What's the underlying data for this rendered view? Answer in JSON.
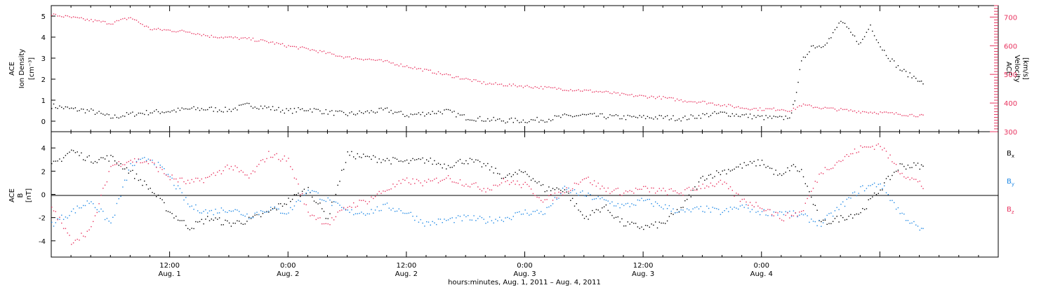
{
  "chart_data": [
    {
      "type": "scatter",
      "panel": "top",
      "ylabel_left": [
        "ACE",
        "Ion Density",
        "[cm⁻³]"
      ],
      "ylabel_right": [
        "ACE",
        "Velocity",
        "[km/s]"
      ],
      "ylim_left": [
        -0.5,
        5.5
      ],
      "yticks_left": [
        0,
        1,
        2,
        3,
        4,
        5
      ],
      "ylim_right": [
        300,
        740
      ],
      "yticks_right": [
        300,
        400,
        500,
        600,
        700
      ],
      "colors": {
        "density": "#000000",
        "velocity": "#e8335f"
      },
      "series": [
        {
          "key": "density",
          "axis": "left",
          "color": "#000000",
          "points": [
            [
              0,
              0.75
            ],
            [
              2,
              0.6
            ],
            [
              4,
              0.5
            ],
            [
              6,
              0.2
            ],
            [
              8,
              0.35
            ],
            [
              10,
              0.45
            ],
            [
              12,
              0.5
            ],
            [
              14,
              0.6
            ],
            [
              16,
              0.6
            ],
            [
              18,
              0.55
            ],
            [
              20,
              0.8
            ],
            [
              22,
              0.65
            ],
            [
              24,
              0.5
            ],
            [
              26,
              0.6
            ],
            [
              28,
              0.45
            ],
            [
              30,
              0.35
            ],
            [
              32,
              0.45
            ],
            [
              34,
              0.55
            ],
            [
              36,
              0.3
            ],
            [
              38,
              0.4
            ],
            [
              40,
              0.5
            ],
            [
              42,
              0.2
            ],
            [
              44,
              0.1
            ],
            [
              46,
              0.05
            ],
            [
              48,
              0.05
            ],
            [
              50,
              0.1
            ],
            [
              52,
              0.25
            ],
            [
              54,
              0.3
            ],
            [
              56,
              0.25
            ],
            [
              58,
              0.2
            ],
            [
              60,
              0.2
            ],
            [
              62,
              0.2
            ],
            [
              64,
              0.15
            ],
            [
              66,
              0.3
            ],
            [
              68,
              0.4
            ],
            [
              70,
              0.3
            ],
            [
              72,
              0.2
            ],
            [
              74,
              0.15
            ],
            [
              75,
              0.3
            ],
            [
              75.5,
              1.5
            ],
            [
              76,
              2.8
            ],
            [
              77,
              3.6
            ],
            [
              78,
              3.6
            ],
            [
              79,
              4.0
            ],
            [
              80,
              4.8
            ],
            [
              81,
              4.2
            ],
            [
              82,
              3.7
            ],
            [
              83,
              4.6
            ],
            [
              84,
              3.6
            ],
            [
              85,
              3.0
            ],
            [
              86,
              2.5
            ],
            [
              87,
              2.2
            ],
            [
              88,
              2.0
            ],
            [
              88.5,
              1.6
            ]
          ]
        },
        {
          "key": "velocity",
          "axis": "right",
          "color": "#e8335f",
          "points": [
            [
              0,
              710
            ],
            [
              2,
              700
            ],
            [
              4,
              690
            ],
            [
              6,
              680
            ],
            [
              8,
              700
            ],
            [
              10,
              660
            ],
            [
              12,
              655
            ],
            [
              14,
              650
            ],
            [
              16,
              635
            ],
            [
              18,
              630
            ],
            [
              20,
              625
            ],
            [
              22,
              615
            ],
            [
              24,
              600
            ],
            [
              26,
              590
            ],
            [
              28,
              575
            ],
            [
              30,
              560
            ],
            [
              32,
              555
            ],
            [
              34,
              545
            ],
            [
              36,
              530
            ],
            [
              38,
              515
            ],
            [
              40,
              500
            ],
            [
              42,
              485
            ],
            [
              44,
              470
            ],
            [
              46,
              465
            ],
            [
              48,
              460
            ],
            [
              50,
              455
            ],
            [
              52,
              450
            ],
            [
              54,
              445
            ],
            [
              56,
              440
            ],
            [
              58,
              430
            ],
            [
              60,
              425
            ],
            [
              62,
              420
            ],
            [
              64,
              410
            ],
            [
              66,
              405
            ],
            [
              68,
              395
            ],
            [
              70,
              385
            ],
            [
              72,
              380
            ],
            [
              74,
              380
            ],
            [
              75,
              375
            ],
            [
              76,
              395
            ],
            [
              78,
              385
            ],
            [
              80,
              378
            ],
            [
              82,
              372
            ],
            [
              84,
              368
            ],
            [
              86,
              363
            ],
            [
              88,
              358
            ],
            [
              88.5,
              355
            ]
          ]
        }
      ]
    },
    {
      "type": "scatter",
      "panel": "bottom",
      "ylabel_left": [
        "ACE",
        "B",
        "[nT]"
      ],
      "ylim": [
        -5.4,
        5.4
      ],
      "yticks": [
        -4,
        -2,
        0,
        2,
        4
      ],
      "legend": [
        "Bₓ",
        "Bᵧ",
        "B_z"
      ],
      "legend_labels": {
        "bx": "B",
        "bx_sub": "x",
        "by": "B",
        "by_sub": "y",
        "bz": "B",
        "bz_sub": "z"
      },
      "colors": {
        "bx": "#000000",
        "by": "#1e88e5",
        "bz": "#e8335f"
      },
      "series": [
        {
          "key": "bx",
          "color": "#000000",
          "points": [
            [
              0,
              2.5
            ],
            [
              2,
              3.8
            ],
            [
              4,
              3.0
            ],
            [
              6,
              3.2
            ],
            [
              8,
              2.0
            ],
            [
              10,
              0.5
            ],
            [
              12,
              -1.5
            ],
            [
              14,
              -2.8
            ],
            [
              16,
              -2.0
            ],
            [
              18,
              -2.5
            ],
            [
              20,
              -2.2
            ],
            [
              22,
              -1.5
            ],
            [
              24,
              -0.5
            ],
            [
              26,
              0.5
            ],
            [
              28,
              -2.0
            ],
            [
              30,
              3.5
            ],
            [
              32,
              3.2
            ],
            [
              34,
              3.0
            ],
            [
              36,
              2.8
            ],
            [
              38,
              3.0
            ],
            [
              40,
              2.5
            ],
            [
              42,
              3.0
            ],
            [
              44,
              2.5
            ],
            [
              46,
              1.5
            ],
            [
              48,
              2.0
            ],
            [
              50,
              0.5
            ],
            [
              52,
              0.5
            ],
            [
              54,
              -2.0
            ],
            [
              56,
              -1.0
            ],
            [
              58,
              -2.5
            ],
            [
              60,
              -2.8
            ],
            [
              62,
              -2.5
            ],
            [
              64,
              -1.0
            ],
            [
              66,
              1.5
            ],
            [
              68,
              2.0
            ],
            [
              70,
              2.5
            ],
            [
              72,
              2.8
            ],
            [
              74,
              1.5
            ],
            [
              75,
              2.5
            ],
            [
              76,
              2.0
            ],
            [
              78,
              -2.5
            ],
            [
              80,
              -2.0
            ],
            [
              82,
              -1.5
            ],
            [
              84,
              0.5
            ],
            [
              86,
              2.5
            ],
            [
              88,
              2.5
            ],
            [
              88.5,
              2.3
            ]
          ]
        },
        {
          "key": "by",
          "color": "#1e88e5",
          "points": [
            [
              0,
              -2.5
            ],
            [
              2,
              -1.5
            ],
            [
              4,
              -0.5
            ],
            [
              6,
              -2.5
            ],
            [
              8,
              2.5
            ],
            [
              10,
              3.2
            ],
            [
              12,
              1.5
            ],
            [
              14,
              -1.0
            ],
            [
              16,
              -1.5
            ],
            [
              18,
              -1.2
            ],
            [
              20,
              -1.8
            ],
            [
              22,
              -1.2
            ],
            [
              24,
              -1.5
            ],
            [
              26,
              0.5
            ],
            [
              28,
              -0.5
            ],
            [
              30,
              -1.5
            ],
            [
              32,
              -1.5
            ],
            [
              34,
              -1.0
            ],
            [
              36,
              -1.5
            ],
            [
              38,
              -2.5
            ],
            [
              40,
              -2.2
            ],
            [
              42,
              -2.0
            ],
            [
              44,
              -2.2
            ],
            [
              46,
              -2.0
            ],
            [
              48,
              -1.5
            ],
            [
              50,
              -1.5
            ],
            [
              52,
              0.5
            ],
            [
              54,
              0.0
            ],
            [
              56,
              -0.5
            ],
            [
              58,
              -1.0
            ],
            [
              60,
              -0.5
            ],
            [
              62,
              -1.0
            ],
            [
              64,
              -1.5
            ],
            [
              66,
              -1.2
            ],
            [
              68,
              -1.5
            ],
            [
              70,
              -1.0
            ],
            [
              72,
              -1.5
            ],
            [
              74,
              -1.5
            ],
            [
              76,
              -1.8
            ],
            [
              78,
              -2.5
            ],
            [
              80,
              -1.0
            ],
            [
              82,
              0.5
            ],
            [
              84,
              1.0
            ],
            [
              86,
              -1.5
            ],
            [
              88,
              -3.0
            ],
            [
              88.5,
              -3.2
            ]
          ]
        },
        {
          "key": "bz",
          "color": "#e8335f",
          "points": [
            [
              0,
              -1.0
            ],
            [
              2,
              -4.0
            ],
            [
              4,
              -3.0
            ],
            [
              6,
              2.5
            ],
            [
              8,
              3.0
            ],
            [
              10,
              2.8
            ],
            [
              12,
              1.5
            ],
            [
              14,
              1.0
            ],
            [
              16,
              1.5
            ],
            [
              18,
              2.5
            ],
            [
              20,
              1.5
            ],
            [
              22,
              3.5
            ],
            [
              24,
              3.0
            ],
            [
              26,
              -1.5
            ],
            [
              28,
              -2.5
            ],
            [
              30,
              -1.0
            ],
            [
              32,
              -0.5
            ],
            [
              34,
              0.5
            ],
            [
              36,
              1.2
            ],
            [
              38,
              1.0
            ],
            [
              40,
              1.5
            ],
            [
              42,
              1.0
            ],
            [
              44,
              0.5
            ],
            [
              46,
              1.2
            ],
            [
              48,
              0.8
            ],
            [
              50,
              -0.5
            ],
            [
              52,
              0.3
            ],
            [
              54,
              1.5
            ],
            [
              56,
              0.5
            ],
            [
              58,
              0.2
            ],
            [
              60,
              0.5
            ],
            [
              62,
              0.3
            ],
            [
              64,
              0.2
            ],
            [
              66,
              0.8
            ],
            [
              68,
              1.0
            ],
            [
              70,
              -0.5
            ],
            [
              72,
              -1.0
            ],
            [
              74,
              -2.0
            ],
            [
              76,
              -1.5
            ],
            [
              78,
              2.0
            ],
            [
              80,
              3.0
            ],
            [
              82,
              4.0
            ],
            [
              84,
              4.3
            ],
            [
              86,
              2.0
            ],
            [
              88,
              1.0
            ],
            [
              88.5,
              0.5
            ]
          ]
        }
      ]
    }
  ],
  "x_axis": {
    "range_hours": [
      0,
      96
    ],
    "ticks": [
      {
        "h": 12,
        "time": "12:00",
        "day": "Aug. 1"
      },
      {
        "h": 24,
        "time": "0:00",
        "day": "Aug. 2"
      },
      {
        "h": 36,
        "time": "12:00",
        "day": "Aug. 2"
      },
      {
        "h": 48,
        "time": "0:00",
        "day": "Aug. 3"
      },
      {
        "h": 60,
        "time": "12:00",
        "day": "Aug. 3"
      },
      {
        "h": 72,
        "time": "0:00",
        "day": "Aug. 4"
      }
    ],
    "xlabel": "hours:minutes, Aug.  1, 2011 – Aug.  4, 2011"
  }
}
